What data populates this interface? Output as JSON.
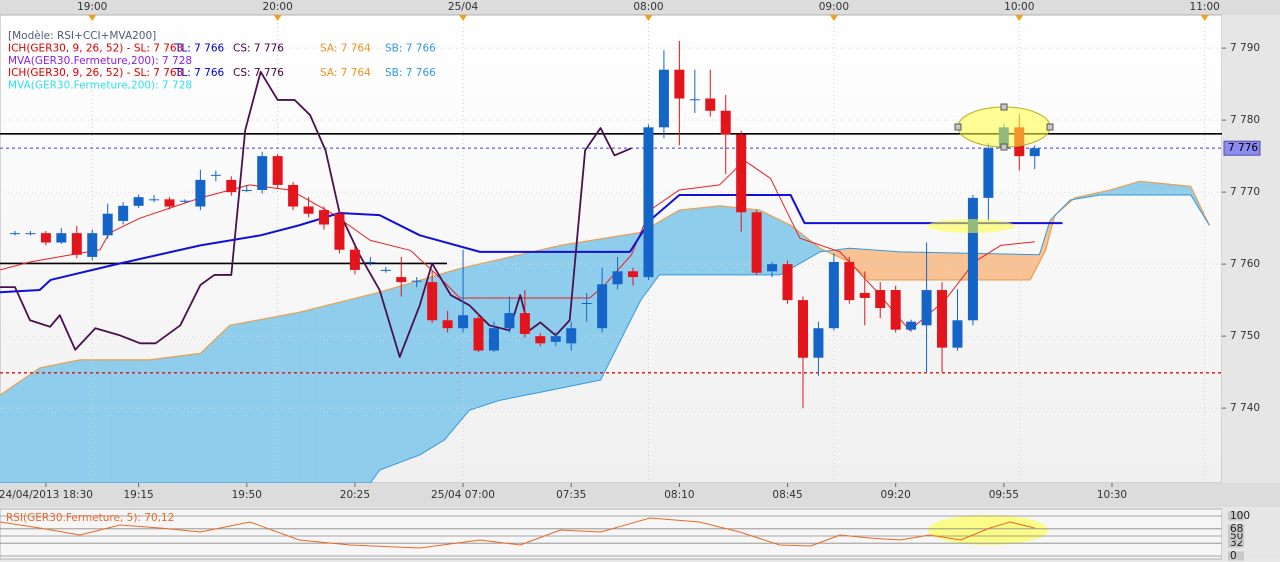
{
  "chart_data": {
    "type": "candlestick",
    "legend": [
      {
        "segments": [
          {
            "text": "[Modèle: RSI+CCI+MVA200]",
            "color": "#505a78"
          }
        ]
      },
      {
        "segments": [
          {
            "text": "ICH(GER30, 9, 26, 52) -  SL: 7 763",
            "color": "#e00000"
          },
          {
            "text": "TL: 7 766",
            "color": "#0000d0"
          },
          {
            "text": "CS: 7 776",
            "color": "#400040"
          },
          {
            "text": "SA: 7 764",
            "color": "#f09020"
          },
          {
            "text": "SB: 7 766",
            "color": "#3399dd"
          }
        ]
      },
      {
        "segments": [
          {
            "text": "MVA(GER30.Fermeture,200): 7 728",
            "color": "#9020e0"
          }
        ]
      },
      {
        "segments": [
          {
            "text": "ICH(GER30, 9, 26, 52) -  SL: 7 763",
            "color": "#e00000"
          },
          {
            "text": "TL: 7 766",
            "color": "#0000d0"
          },
          {
            "text": "CS: 7 776",
            "color": "#400040"
          },
          {
            "text": "SA: 7 764",
            "color": "#f09020"
          },
          {
            "text": "SB: 7 766",
            "color": "#3399dd"
          }
        ]
      },
      {
        "segments": [
          {
            "text": "MVA(GER30.Fermeture,200): 7 728",
            "color": "#30e0f0"
          }
        ]
      }
    ],
    "up_color": "#1565c8",
    "down_color": "#e2141c",
    "ohlc": [
      [
        7764.3,
        7764.6,
        7764.0,
        7764.3
      ],
      [
        7764.3,
        7764.6,
        7764.0,
        7764.3
      ],
      [
        7764.3,
        7764.6,
        7762.6,
        7763.0
      ],
      [
        7763.0,
        7765.0,
        7762.8,
        7764.3
      ],
      [
        7764.3,
        7765.3,
        7760.8,
        7761.3
      ],
      [
        7761.0,
        7764.8,
        7760.5,
        7764.3
      ],
      [
        7764.0,
        7768.4,
        7763.5,
        7767.0
      ],
      [
        7766.0,
        7768.6,
        7765.5,
        7768.1
      ],
      [
        7768.1,
        7769.7,
        7767.8,
        7769.3
      ],
      [
        7769.0,
        7769.6,
        7768.6,
        7769.0
      ],
      [
        7769.0,
        7769.3,
        7767.6,
        7768.0
      ],
      [
        7768.8,
        7769.0,
        7768.4,
        7768.8
      ],
      [
        7768.0,
        7773.1,
        7767.5,
        7771.7
      ],
      [
        7772.4,
        7773.0,
        7771.5,
        7772.4
      ],
      [
        7771.7,
        7772.2,
        7769.5,
        7770.0
      ],
      [
        7770.3,
        7771.0,
        7770.0,
        7770.3
      ],
      [
        7770.3,
        7775.6,
        7769.8,
        7775.0
      ],
      [
        7775.0,
        7775.3,
        7770.5,
        7771.0
      ],
      [
        7771.0,
        7771.4,
        7767.5,
        7768.0
      ],
      [
        7768.0,
        7769.3,
        7766.5,
        7767.0
      ],
      [
        7767.5,
        7768.0,
        7764.8,
        7765.5
      ],
      [
        7767.0,
        7767.5,
        7761.5,
        7762.0
      ],
      [
        7762.0,
        7762.5,
        7758.6,
        7759.2
      ],
      [
        7760.3,
        7761.0,
        7759.8,
        7760.3
      ],
      [
        7759.2,
        7759.6,
        7758.8,
        7759.2
      ],
      [
        7758.2,
        7761.0,
        7755.5,
        7757.5
      ],
      [
        7757.7,
        7758.2,
        7756.8,
        7757.7
      ],
      [
        7757.5,
        7759.0,
        7751.8,
        7752.2
      ],
      [
        7752.2,
        7753.5,
        7750.5,
        7751.1
      ],
      [
        7751.1,
        7762.0,
        7750.5,
        7752.9
      ],
      [
        7752.5,
        7753.2,
        7747.8,
        7748.0
      ],
      [
        7748.0,
        7752.0,
        7747.8,
        7751.1
      ],
      [
        7751.1,
        7755.5,
        7750.5,
        7753.2
      ],
      [
        7753.2,
        7756.4,
        7749.8,
        7750.3
      ],
      [
        7750.0,
        7750.4,
        7748.6,
        7749.0
      ],
      [
        7749.2,
        7750.5,
        7748.6,
        7750.0
      ],
      [
        7749.0,
        7752.0,
        7748.0,
        7751.1
      ],
      [
        7754.6,
        7756.0,
        7752.0,
        7754.6
      ],
      [
        7751.1,
        7759.5,
        7750.5,
        7757.2
      ],
      [
        7757.2,
        7761.0,
        7756.5,
        7759.0
      ],
      [
        7759.0,
        7759.5,
        7757.0,
        7758.2
      ],
      [
        7758.2,
        7779.4,
        7757.8,
        7779.0
      ],
      [
        7779.0,
        7789.7,
        7777.5,
        7787.0
      ],
      [
        7787.0,
        7791.0,
        7776.5,
        7783.0
      ],
      [
        7782.9,
        7787.0,
        7781.0,
        7782.9
      ],
      [
        7783.0,
        7787.0,
        7780.5,
        7781.3
      ],
      [
        7781.3,
        7783.5,
        7772.5,
        7778.0
      ],
      [
        7778.0,
        7778.5,
        7764.5,
        7767.2
      ],
      [
        7767.2,
        7767.5,
        7758.5,
        7758.8
      ],
      [
        7759.0,
        7760.3,
        7758.2,
        7760.0
      ],
      [
        7760.0,
        7760.5,
        7754.5,
        7755.0
      ],
      [
        7755.0,
        7755.5,
        7740.0,
        7747.0
      ],
      [
        7747.0,
        7752.0,
        7744.5,
        7751.1
      ],
      [
        7751.1,
        7761.5,
        7750.8,
        7760.3
      ],
      [
        7760.3,
        7761.0,
        7754.5,
        7755.0
      ],
      [
        7756.0,
        7759.0,
        7751.5,
        7755.3
      ],
      [
        7756.4,
        7757.5,
        7752.5,
        7753.9
      ],
      [
        7756.4,
        7757.0,
        7750.5,
        7750.9
      ],
      [
        7750.9,
        7752.3,
        7750.6,
        7752.0
      ],
      [
        7751.5,
        7763.0,
        7745.0,
        7756.4
      ],
      [
        7756.4,
        7757.5,
        7745.0,
        7748.4
      ],
      [
        7748.4,
        7756.5,
        7748.0,
        7752.2
      ],
      [
        7752.2,
        7769.6,
        7751.5,
        7769.2
      ],
      [
        7769.2,
        7776.8,
        7766.0,
        7776.1
      ],
      [
        7776.1,
        7779.5,
        7775.8,
        7779.0
      ],
      [
        7779.0,
        7780.8,
        7773.0,
        7775.0
      ],
      [
        7775.0,
        7776.5,
        7773.2,
        7776.1
      ]
    ],
    "cloud": {
      "fill_up": "#8fcdec",
      "fill_down": "#f8c294",
      "sa": {
        "color": "#e8a050",
        "x": [
          -0.97,
          1.62,
          4.2,
          8.7,
          12.0,
          13.9,
          18.4,
          23.6,
          28.8,
          35.3,
          40.5,
          43.0,
          45.6,
          48.2,
          50.2,
          52.1,
          54.0,
          55.3,
          65.7,
          66.7,
          67.3,
          68.6,
          70.9,
          72.8,
          76.1,
          77.3
        ],
        "values": [
          7741.8,
          7745.6,
          7746.7,
          7746.7,
          7747.6,
          7751.5,
          7753.3,
          7756.1,
          7759.4,
          7762.6,
          7764.4,
          7767.5,
          7768.1,
          7767.5,
          7765.4,
          7762.2,
          7760.3,
          7757.8,
          7757.8,
          7761.9,
          7766.8,
          7769.2,
          7770.3,
          7771.5,
          7770.8,
          7765.4
        ]
      },
      "sb": {
        "color": "#3399dd",
        "x": [
          -0.97,
          23.0,
          23.6,
          26.2,
          27.8,
          29.4,
          31.4,
          34.0,
          37.9,
          40.5,
          41.7,
          49.5,
          52.1,
          54.0,
          57.3,
          66.3,
          67.0,
          68.3,
          70.2,
          76.1,
          77.3
        ],
        "values": [
          7729.6,
          7729.6,
          7731.4,
          7733.5,
          7735.6,
          7739.7,
          7741.1,
          7742.2,
          7743.9,
          7755.0,
          7758.5,
          7758.5,
          7761.7,
          7762.2,
          7761.7,
          7761.3,
          7766.1,
          7768.9,
          7769.6,
          7769.6,
          7765.4
        ]
      }
    },
    "lines": [
      {
        "color": "#e82020",
        "x": [
          -0.97,
          0.97,
          5.5,
          6.1,
          8.1,
          12.0,
          15.2,
          17.8,
          20.4,
          23.0,
          25.6,
          27.5,
          28.8,
          37.2,
          38.2,
          39.9,
          41.1,
          43.0,
          45.6,
          47.2,
          48.9,
          50.8,
          53.4,
          55.7,
          57.9,
          60.2,
          62.1,
          63.8,
          66.0
        ],
        "values": [
          7759.2,
          7760.3,
          7762.0,
          7764.3,
          7766.4,
          7769.2,
          7771.0,
          7770.3,
          7767.2,
          7763.3,
          7761.9,
          7758.1,
          7755.3,
          7755.3,
          7757.2,
          7761.3,
          7767.5,
          7770.3,
          7771.0,
          7774.4,
          7771.9,
          7763.6,
          7761.7,
          7756.4,
          7750.8,
          7755.0,
          7760.3,
          7762.6,
          7763.1
        ]
      },
      {
        "color": "#1010d8",
        "x": [
          -0.97,
          1.6,
          2.3,
          6.8,
          12.0,
          15.9,
          18.4,
          21.0,
          23.6,
          26.2,
          30.1,
          39.8,
          41.1,
          43.0,
          50.2,
          51.1,
          67.8
        ],
        "values": [
          7756.1,
          7756.4,
          7757.8,
          7760.1,
          7762.6,
          7764.0,
          7765.4,
          7767.1,
          7766.8,
          7764.0,
          7761.7,
          7761.7,
          7766.1,
          7769.6,
          7769.6,
          7765.7,
          7765.7
        ]
      },
      {
        "color": "#4a1050",
        "x": [
          -0.97,
          0,
          0.97,
          2.27,
          2.9,
          3.9,
          5.2,
          6.8,
          8.1,
          9.1,
          10.7,
          12.0,
          12.9,
          14.0,
          14.9,
          15.9,
          17.0,
          18.1,
          19.1,
          20.1,
          21.0,
          22.3,
          23.6,
          24.9,
          26.2,
          27.0,
          28.2,
          29.4,
          30.7,
          32.0,
          32.7,
          33.3,
          34.0,
          35.0,
          35.9,
          36.9,
          37.9,
          38.8,
          39.9
        ],
        "values": [
          7756.8,
          7756.8,
          7752.2,
          7751.3,
          7752.9,
          7748.1,
          7751.1,
          7750.1,
          7749.0,
          7749.0,
          7751.5,
          7757.1,
          7758.5,
          7758.5,
          7778.6,
          7786.7,
          7782.8,
          7782.8,
          7780.7,
          7775.8,
          7767.2,
          7761.3,
          7756.4,
          7747.1,
          7754.3,
          7760.1,
          7755.7,
          7754.3,
          7751.5,
          7750.8,
          7755.7,
          7750.8,
          7751.9,
          7750.1,
          7752.2,
          7775.8,
          7778.9,
          7775.1,
          7776.1
        ]
      }
    ],
    "levels": [
      {
        "value": 7778.1,
        "color": "#000000",
        "style": "solid"
      },
      {
        "value": 7760.1,
        "color": "#000000",
        "style": "solid",
        "xlim": [
          -0.97,
          27.96
        ]
      },
      {
        "value": 7744.9,
        "color": "#e01010",
        "style": "dotted"
      },
      {
        "value": 7776.1,
        "color": "#7070e0",
        "style": "dotted"
      }
    ],
    "last_price": {
      "value": 7776.1,
      "label": "7 776",
      "color": "#8c8cf0"
    },
    "xlim": [
      -0.97,
      78.12
    ],
    "ylim": [
      7729.6,
      7794.6
    ],
    "yticks": [
      {
        "value": 7740,
        "label": "7 740"
      },
      {
        "value": 7750,
        "label": "7 750"
      },
      {
        "value": 7760,
        "label": "7 760"
      },
      {
        "value": 7770,
        "label": "7 770"
      },
      {
        "value": 7780,
        "label": "7 780"
      },
      {
        "value": 7790,
        "label": "7 790"
      }
    ],
    "xticks": [
      {
        "value": 2,
        "label": "24/04/2013 18:30"
      },
      {
        "value": 8,
        "label": "19:15"
      },
      {
        "value": 15,
        "label": "19:50"
      },
      {
        "value": 22,
        "label": "20:25"
      },
      {
        "value": 29,
        "label": "25/04 07:00"
      },
      {
        "value": 36,
        "label": "07:35"
      },
      {
        "value": 43,
        "label": "08:10"
      },
      {
        "value": 50,
        "label": "08:45"
      },
      {
        "value": 57,
        "label": "09:20"
      },
      {
        "value": 64,
        "label": "09:55"
      },
      {
        "value": 71,
        "label": "10:30"
      }
    ],
    "xticks_top": [
      {
        "value": 5,
        "label": "19:00"
      },
      {
        "value": 17,
        "label": "20:00"
      },
      {
        "value": 29,
        "label": "25/04"
      },
      {
        "value": 41,
        "label": "08:00"
      },
      {
        "value": 53,
        "label": "09:00"
      },
      {
        "value": 65,
        "label": "10:00"
      },
      {
        "value": 77,
        "label": "11:00"
      }
    ],
    "rsi": {
      "label": "RSI(GER30.Fermeture, 5): 70,12",
      "color": "#e86a2a",
      "ylim": [
        0,
        100
      ],
      "yticks": [
        0,
        32,
        50,
        68,
        100
      ],
      "x": [
        -0.97,
        1.6,
        4.2,
        6.8,
        9.4,
        12.0,
        15.2,
        18.4,
        21.7,
        26.2,
        30.1,
        32.7,
        35.3,
        37.9,
        41.1,
        44.3,
        46.9,
        49.5,
        51.5,
        53.4,
        55.3,
        57.3,
        59.2,
        61.2,
        63.1,
        64.4,
        66.0
      ],
      "values": [
        85,
        70,
        52.5,
        77.5,
        70,
        60,
        85,
        40,
        27.5,
        20,
        40,
        27.5,
        65,
        60,
        95,
        85,
        60,
        27.5,
        25,
        52.5,
        45,
        40,
        52.5,
        40,
        70,
        85,
        70.12
      ]
    }
  }
}
